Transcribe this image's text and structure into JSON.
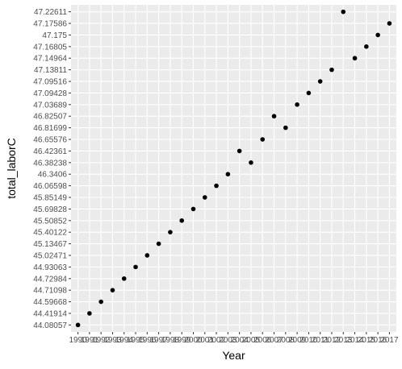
{
  "chart_data": {
    "type": "scatter",
    "xlabel": "Year",
    "ylabel": "total_laborC",
    "x": [
      1990,
      1991,
      1992,
      1993,
      1994,
      1995,
      1996,
      1997,
      1998,
      1999,
      2000,
      2001,
      2002,
      2003,
      2004,
      2005,
      2006,
      2007,
      2008,
      2009,
      2010,
      2011,
      2012,
      2013,
      2014,
      2015,
      2016,
      2017
    ],
    "x_tick_labels": [
      "1990",
      "1991",
      "1992",
      "1993",
      "1994",
      "1995",
      "1996",
      "1997",
      "1998",
      "1999",
      "2000",
      "2001",
      "2002",
      "2003",
      "2004",
      "2005",
      "2006",
      "2007",
      "2008",
      "2009",
      "2010",
      "2011",
      "2012",
      "2013",
      "2014",
      "2015",
      "2016",
      "2017"
    ],
    "y_categories": [
      "44.08057",
      "44.41914",
      "44.59668",
      "44.71098",
      "44.72984",
      "44.93063",
      "45.02471",
      "45.13467",
      "45.40122",
      "45.50852",
      "45.69828",
      "45.85149",
      "46.06598",
      "46.3406",
      "46.38238",
      "46.42361",
      "46.65576",
      "46.81699",
      "46.82507",
      "47.03689",
      "47.09428",
      "47.09516",
      "47.13811",
      "47.14964",
      "47.16805",
      "47.175",
      "47.17586",
      "47.22611"
    ],
    "y": [
      "44.08057",
      "44.41914",
      "44.59668",
      "44.71098",
      "44.72984",
      "44.93063",
      "45.02471",
      "45.13467",
      "45.40122",
      "45.50852",
      "45.69828",
      "45.85149",
      "46.06598",
      "46.3406",
      "46.42361",
      "46.38238",
      "46.65576",
      "46.82507",
      "46.81699",
      "47.03689",
      "47.09428",
      "47.09516",
      "47.13811",
      "47.22611",
      "47.14964",
      "47.16805",
      "47.175",
      "47.17586"
    ],
    "grid": true,
    "colors": {
      "panel": "#ebebeb",
      "grid_major": "#ffffff",
      "point": "#000000",
      "tick_text": "#4d4d4d",
      "tick_mark": "#333333"
    }
  }
}
